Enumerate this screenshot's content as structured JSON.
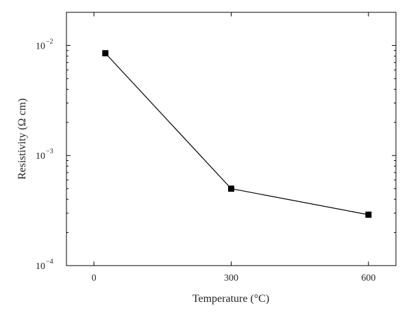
{
  "chart_data": {
    "type": "line",
    "xlabel": "Temperature (°C)",
    "ylabel": "Resistivity (Ω cm)",
    "x_ticks": [
      "0",
      "300",
      "600"
    ],
    "y_ticks": [
      {
        "value": 0.0001,
        "base": "10",
        "exp": "−4"
      },
      {
        "value": 0.001,
        "base": "10",
        "exp": "−3"
      },
      {
        "value": 0.01,
        "base": "10",
        "exp": "−2"
      }
    ],
    "xlim": [
      -60,
      660
    ],
    "ylim": [
      0.0001,
      0.02
    ],
    "y_scale": "log",
    "grid": false,
    "series": [
      {
        "x": [
          25,
          300,
          600
        ],
        "y": [
          0.0085,
          0.0005,
          0.00029
        ],
        "marker": "square",
        "color": "#000000"
      }
    ]
  }
}
